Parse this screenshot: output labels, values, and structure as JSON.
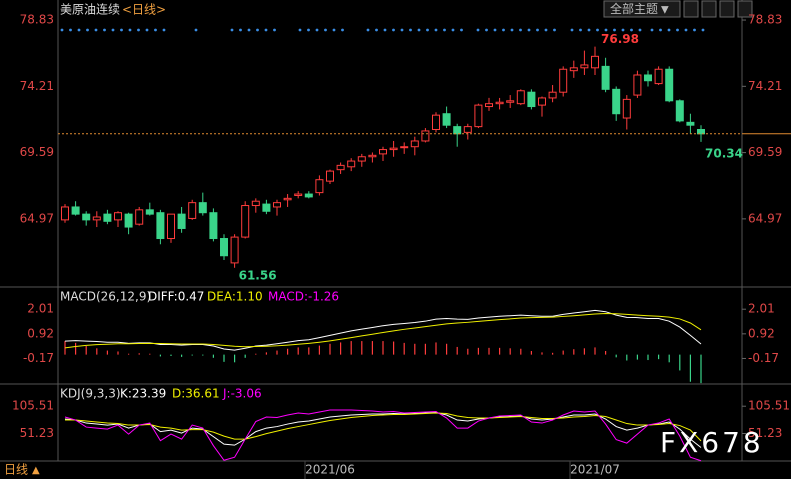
{
  "header": {
    "title": "美原油连续",
    "period": "<日线>",
    "theme_button": "全部主题"
  },
  "footer": {
    "period": "日线"
  },
  "watermark": "FX678",
  "chart_data": [
    {
      "type": "candlestick",
      "categories": [
        null,
        null,
        null,
        null,
        null,
        null,
        null,
        null,
        null,
        null,
        null,
        null,
        null,
        null,
        null,
        null,
        null,
        null,
        null,
        null,
        null,
        null,
        null,
        null,
        null,
        "2021/06",
        null,
        null,
        null,
        null,
        null,
        null,
        null,
        null,
        null,
        null,
        null,
        null,
        null,
        null,
        null,
        null,
        null,
        null,
        null,
        null,
        null,
        null,
        null,
        null,
        "2021/07",
        null,
        null,
        null,
        null,
        null,
        null,
        null,
        null,
        null,
        null
      ],
      "open": [
        64.9,
        65.8,
        65.3,
        64.9,
        65.3,
        64.9,
        65.3,
        64.6,
        65.6,
        65.4,
        63.6,
        65.3,
        65.0,
        66.1,
        65.4,
        63.6,
        61.9,
        63.7,
        65.9,
        66.0,
        65.8,
        66.3,
        66.6,
        66.7,
        66.8,
        67.6,
        68.4,
        68.6,
        69.0,
        69.3,
        69.5,
        69.8,
        70.0,
        70.0,
        70.4,
        71.2,
        72.3,
        71.4,
        71.0,
        71.4,
        72.8,
        73.0,
        73.1,
        73.0,
        73.8,
        72.9,
        73.4,
        73.8,
        75.3,
        75.5,
        75.5,
        75.6,
        74.0,
        72.0,
        73.6,
        75.0,
        74.4,
        75.4,
        73.2,
        71.7,
        71.2
      ],
      "high": [
        66.0,
        66.2,
        65.5,
        65.5,
        65.6,
        65.5,
        65.4,
        65.8,
        66.1,
        65.6,
        65.3,
        65.8,
        66.3,
        66.8,
        65.7,
        63.9,
        63.9,
        66.2,
        66.4,
        66.3,
        66.3,
        66.7,
        66.9,
        66.9,
        68.0,
        68.4,
        68.9,
        69.2,
        69.5,
        69.6,
        70.0,
        70.4,
        70.3,
        70.7,
        71.3,
        72.4,
        72.8,
        71.6,
        71.6,
        73.0,
        73.4,
        73.4,
        73.6,
        74.0,
        74.0,
        73.5,
        74.3,
        75.6,
        76.0,
        76.7,
        76.98,
        76.2,
        74.2,
        73.6,
        75.3,
        75.3,
        75.6,
        75.6,
        73.3,
        72.3,
        71.5
      ],
      "low": [
        64.7,
        65.2,
        64.5,
        64.4,
        64.6,
        64.4,
        63.9,
        64.5,
        65.2,
        63.2,
        63.3,
        64.0,
        64.9,
        65.2,
        63.4,
        62.1,
        61.56,
        63.6,
        65.4,
        65.3,
        65.2,
        65.8,
        66.4,
        66.4,
        66.6,
        67.4,
        68.1,
        68.3,
        68.6,
        68.9,
        69.0,
        69.3,
        69.5,
        69.4,
        70.3,
        71.0,
        71.3,
        70.0,
        70.5,
        71.3,
        72.5,
        72.6,
        72.7,
        72.9,
        72.6,
        72.1,
        73.1,
        73.5,
        74.8,
        75.0,
        75.0,
        73.8,
        71.8,
        71.2,
        73.4,
        74.2,
        74.3,
        73.1,
        71.7,
        70.9,
        70.34
      ],
      "close": [
        65.8,
        65.3,
        64.9,
        65.1,
        64.8,
        65.4,
        64.4,
        65.6,
        65.3,
        63.6,
        65.3,
        64.3,
        66.1,
        65.4,
        63.6,
        62.4,
        63.7,
        65.9,
        66.2,
        65.5,
        66.1,
        66.4,
        66.7,
        66.5,
        67.7,
        68.3,
        68.7,
        69.0,
        69.3,
        69.4,
        69.8,
        69.9,
        70.0,
        70.4,
        71.1,
        72.2,
        71.5,
        70.9,
        71.4,
        72.9,
        73.0,
        73.1,
        73.2,
        73.9,
        72.8,
        73.4,
        73.8,
        75.4,
        75.5,
        75.7,
        76.3,
        74.0,
        72.3,
        73.3,
        75.0,
        74.6,
        75.4,
        73.2,
        71.8,
        71.5,
        70.9
      ],
      "up_color": "#ff3c3c",
      "down_color": "#3ad48a",
      "ylim": [
        60.36,
        79.53
      ],
      "yticks": [
        64.97,
        69.59,
        74.21,
        78.83
      ]
    },
    {
      "type": "macd",
      "title": "MACD(26,12,9)",
      "series": [
        {
          "name": "DIFF:0.47",
          "color": "#ffffff",
          "values": [
            0.6,
            0.62,
            0.6,
            0.58,
            0.55,
            0.55,
            0.5,
            0.52,
            0.52,
            0.45,
            0.45,
            0.42,
            0.45,
            0.45,
            0.38,
            0.25,
            0.2,
            0.28,
            0.38,
            0.42,
            0.48,
            0.55,
            0.62,
            0.66,
            0.75,
            0.85,
            0.95,
            1.05,
            1.13,
            1.2,
            1.28,
            1.34,
            1.38,
            1.42,
            1.48,
            1.57,
            1.6,
            1.57,
            1.56,
            1.62,
            1.66,
            1.7,
            1.72,
            1.75,
            1.72,
            1.7,
            1.7,
            1.78,
            1.84,
            1.9,
            1.96,
            1.9,
            1.75,
            1.65,
            1.64,
            1.6,
            1.6,
            1.48,
            1.22,
            0.85,
            0.47
          ]
        },
        {
          "name": "DEA:1.10",
          "color": "#f0f000",
          "values": [
            0.3,
            0.36,
            0.41,
            0.44,
            0.46,
            0.48,
            0.48,
            0.49,
            0.5,
            0.49,
            0.48,
            0.47,
            0.47,
            0.47,
            0.45,
            0.41,
            0.37,
            0.35,
            0.36,
            0.37,
            0.39,
            0.42,
            0.46,
            0.5,
            0.55,
            0.61,
            0.68,
            0.75,
            0.83,
            0.9,
            0.98,
            1.05,
            1.12,
            1.18,
            1.24,
            1.3,
            1.36,
            1.4,
            1.43,
            1.47,
            1.51,
            1.55,
            1.58,
            1.62,
            1.64,
            1.65,
            1.66,
            1.69,
            1.72,
            1.76,
            1.8,
            1.82,
            1.81,
            1.78,
            1.75,
            1.72,
            1.7,
            1.66,
            1.58,
            1.4,
            1.1
          ]
        },
        {
          "name": "MACD:-1.26",
          "color": "#ff00ff",
          "bars": true,
          "up_color": "#ff3c3c",
          "down_color": "#3ad48a",
          "values": [
            0.6,
            0.52,
            0.38,
            0.28,
            0.18,
            0.14,
            0.04,
            0.06,
            0.04,
            -0.08,
            -0.06,
            -0.1,
            -0.04,
            -0.04,
            -0.14,
            -0.32,
            -0.34,
            -0.14,
            0.04,
            0.1,
            0.18,
            0.26,
            0.32,
            0.32,
            0.4,
            0.48,
            0.54,
            0.6,
            0.6,
            0.6,
            0.6,
            0.58,
            0.52,
            0.48,
            0.48,
            0.54,
            0.48,
            0.34,
            0.26,
            0.3,
            0.3,
            0.3,
            0.28,
            0.26,
            0.16,
            0.1,
            0.08,
            0.18,
            0.24,
            0.28,
            0.32,
            0.16,
            -0.12,
            -0.26,
            -0.22,
            -0.24,
            -0.2,
            -0.34,
            -0.7,
            -1.2,
            -1.26
          ]
        }
      ],
      "ylim": [
        -1.3,
        2.86
      ],
      "yticks": [
        -0.17,
        0.92,
        2.01
      ]
    },
    {
      "type": "line",
      "title": "KDJ(9,3,3)",
      "series": [
        {
          "name": "K:23.39",
          "color": "#ffffff",
          "values": [
            80,
            78,
            72,
            70,
            68,
            70,
            62,
            68,
            70,
            55,
            58,
            52,
            62,
            60,
            45,
            30,
            28,
            40,
            55,
            62,
            65,
            70,
            74,
            76,
            80,
            84,
            86,
            88,
            89,
            90,
            90,
            91,
            90,
            91,
            92,
            93,
            88,
            78,
            76,
            80,
            82,
            84,
            85,
            86,
            80,
            78,
            80,
            84,
            88,
            88,
            90,
            80,
            65,
            58,
            62,
            68,
            70,
            74,
            60,
            40,
            23.39
          ]
        },
        {
          "name": "D:36.61",
          "color": "#f0f000",
          "values": [
            78,
            78,
            76,
            74,
            72,
            71,
            68,
            68,
            69,
            64,
            62,
            58,
            59,
            59,
            54,
            46,
            40,
            40,
            45,
            51,
            56,
            61,
            65,
            69,
            73,
            77,
            80,
            83,
            85,
            87,
            88,
            89,
            89,
            90,
            91,
            92,
            91,
            86,
            83,
            82,
            82,
            83,
            84,
            85,
            83,
            81,
            81,
            82,
            84,
            85,
            87,
            85,
            78,
            71,
            68,
            68,
            69,
            71,
            67,
            58,
            36.61
          ]
        },
        {
          "name": "J:-3.06",
          "color": "#ff00ff",
          "values": [
            84,
            78,
            64,
            62,
            60,
            68,
            50,
            68,
            72,
            37,
            50,
            40,
            68,
            62,
            27,
            -2,
            4,
            40,
            75,
            84,
            83,
            88,
            92,
            90,
            94,
            98,
            98,
            98,
            97,
            96,
            94,
            95,
            92,
            93,
            94,
            95,
            82,
            62,
            62,
            76,
            82,
            86,
            87,
            88,
            74,
            72,
            78,
            88,
            96,
            94,
            96,
            70,
            39,
            32,
            50,
            68,
            72,
            80,
            46,
            4,
            -3.06
          ]
        }
      ],
      "ylim": [
        -3.5,
        147.7
      ],
      "yticks": [
        51.23,
        105.51
      ]
    }
  ]
}
